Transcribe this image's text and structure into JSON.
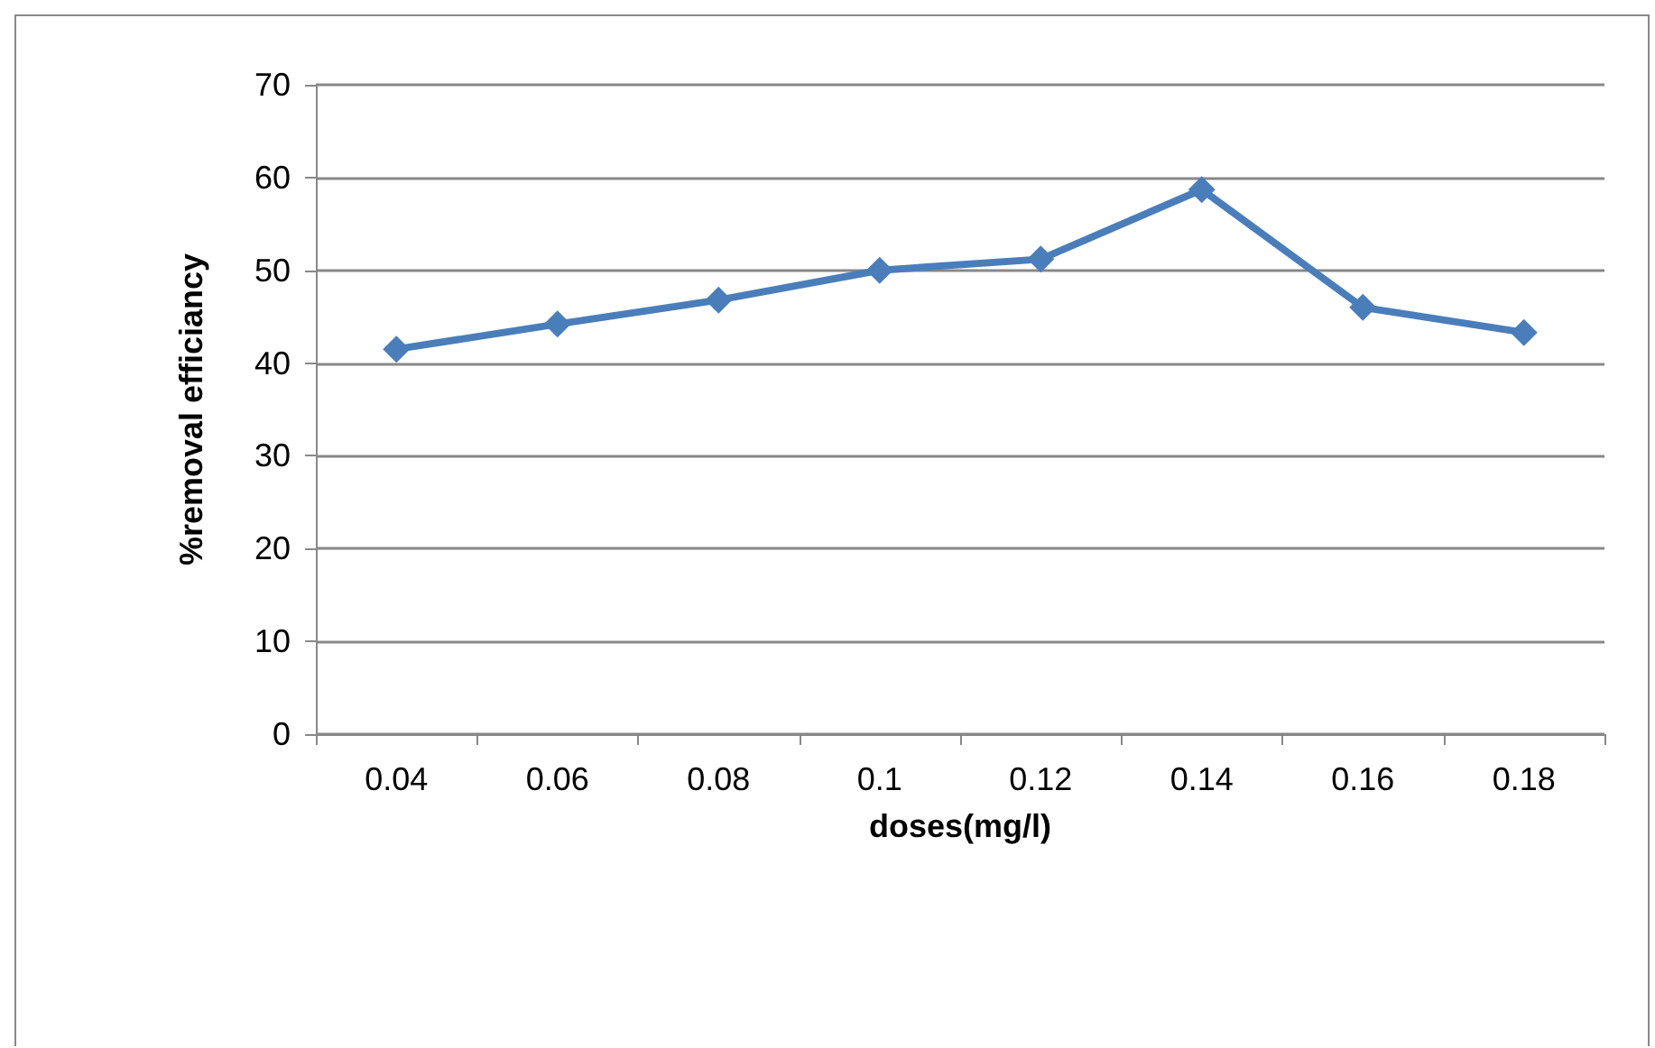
{
  "chart_data": {
    "type": "line",
    "xlabel": "doses(mg/l)",
    "ylabel": "%removal efficiancy",
    "categories": [
      "0.04",
      "0.06",
      "0.08",
      "0.1",
      "0.12",
      "0.14",
      "0.16",
      "0.18"
    ],
    "series": [
      {
        "color": "#4a7ebb",
        "values": [
          41.5,
          44.2,
          46.8,
          50,
          51.2,
          58.7,
          46,
          43.3
        ]
      }
    ],
    "ylim": [
      0,
      70
    ],
    "yticks": [
      0,
      10,
      20,
      30,
      40,
      50,
      60,
      70
    ],
    "grid": "y",
    "marker": "diamond",
    "line_style": "solid"
  }
}
